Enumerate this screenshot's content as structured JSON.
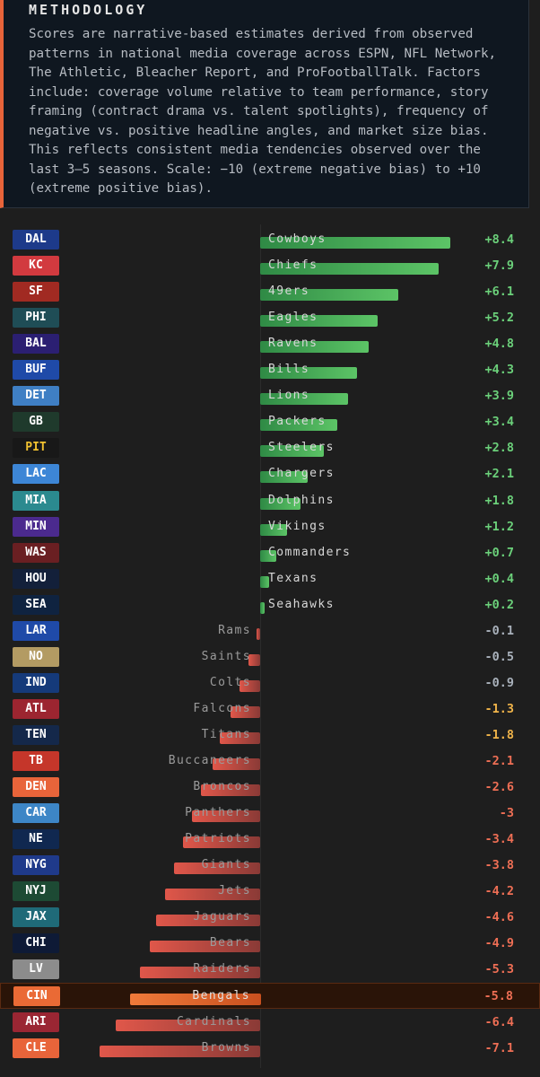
{
  "methodology": {
    "title": "METHODOLOGY",
    "text": "Scores are narrative-based estimates derived from observed\npatterns in national media coverage across ESPN, NFL Network,\nThe Athletic, Bleacher Report, and ProFootballTalk. Factors\ninclude: coverage volume relative to team performance, story\nframing (contract drama vs. talent spotlights), frequency of\nnegative vs. positive headline angles, and market size bias.\nThis reflects consistent media tendencies observed over the\nlast 3–5 seasons. Scale: −10 (extreme negative bias) to +10\n(extreme positive bias)."
  },
  "colors": {
    "positive_value": "#6bd07a",
    "neutral_value": "#a9b1bb",
    "mild_negative_value": "#f0b44a",
    "strong_negative_value": "#ef6f55",
    "highlight": "#f07a3a"
  },
  "chart_data": {
    "type": "bar",
    "orientation": "horizontal",
    "xlim": [
      -10,
      10
    ],
    "highlighted": "CIN",
    "rows": [
      {
        "abbr": "DAL",
        "team": "Cowboys",
        "value": 8.4,
        "label": "+8.4",
        "badge_color": "#1d3a8a",
        "badge_text": "#ffffff"
      },
      {
        "abbr": "KC",
        "team": "Chiefs",
        "value": 7.9,
        "label": "+7.9",
        "badge_color": "#d23a3f",
        "badge_text": "#ffffff"
      },
      {
        "abbr": "SF",
        "team": "49ers",
        "value": 6.1,
        "label": "+6.1",
        "badge_color": "#a12a22",
        "badge_text": "#ffffff"
      },
      {
        "abbr": "PHI",
        "team": "Eagles",
        "value": 5.2,
        "label": "+5.2",
        "badge_color": "#1f4d56",
        "badge_text": "#ffffff"
      },
      {
        "abbr": "BAL",
        "team": "Ravens",
        "value": 4.8,
        "label": "+4.8",
        "badge_color": "#2b1f72",
        "badge_text": "#ffffff"
      },
      {
        "abbr": "BUF",
        "team": "Bills",
        "value": 4.3,
        "label": "+4.3",
        "badge_color": "#1f4aa8",
        "badge_text": "#ffffff"
      },
      {
        "abbr": "DET",
        "team": "Lions",
        "value": 3.9,
        "label": "+3.9",
        "badge_color": "#3f7fc4",
        "badge_text": "#ffffff"
      },
      {
        "abbr": "GB",
        "team": "Packers",
        "value": 3.4,
        "label": "+3.4",
        "badge_color": "#1f3a2c",
        "badge_text": "#ffffff"
      },
      {
        "abbr": "PIT",
        "team": "Steelers",
        "value": 2.8,
        "label": "+2.8",
        "badge_color": "#181818",
        "badge_text": "#f2c230"
      },
      {
        "abbr": "LAC",
        "team": "Chargers",
        "value": 2.1,
        "label": "+2.1",
        "badge_color": "#3d86d6",
        "badge_text": "#ffffff"
      },
      {
        "abbr": "MIA",
        "team": "Dolphins",
        "value": 1.8,
        "label": "+1.8",
        "badge_color": "#2b8a8f",
        "badge_text": "#ffffff"
      },
      {
        "abbr": "MIN",
        "team": "Vikings",
        "value": 1.2,
        "label": "+1.2",
        "badge_color": "#4b2a8e",
        "badge_text": "#ffffff"
      },
      {
        "abbr": "WAS",
        "team": "Commanders",
        "value": 0.7,
        "label": "+0.7",
        "badge_color": "#6a1f22",
        "badge_text": "#ffffff"
      },
      {
        "abbr": "HOU",
        "team": "Texans",
        "value": 0.4,
        "label": "+0.4",
        "badge_color": "#13203a",
        "badge_text": "#ffffff"
      },
      {
        "abbr": "SEA",
        "team": "Seahawks",
        "value": 0.2,
        "label": "+0.2",
        "badge_color": "#0f2340",
        "badge_text": "#ffffff"
      },
      {
        "abbr": "LAR",
        "team": "Rams",
        "value": -0.1,
        "label": "-0.1",
        "badge_color": "#1f4aa8",
        "badge_text": "#ffffff"
      },
      {
        "abbr": "NO",
        "team": "Saints",
        "value": -0.5,
        "label": "-0.5",
        "badge_color": "#b39b63",
        "badge_text": "#ffffff"
      },
      {
        "abbr": "IND",
        "team": "Colts",
        "value": -0.9,
        "label": "-0.9",
        "badge_color": "#153a7a",
        "badge_text": "#ffffff"
      },
      {
        "abbr": "ATL",
        "team": "Falcons",
        "value": -1.3,
        "label": "-1.3",
        "badge_color": "#9c2530",
        "badge_text": "#ffffff"
      },
      {
        "abbr": "TEN",
        "team": "Titans",
        "value": -1.8,
        "label": "-1.8",
        "badge_color": "#14284a",
        "badge_text": "#ffffff"
      },
      {
        "abbr": "TB",
        "team": "Buccaneers",
        "value": -2.1,
        "label": "-2.1",
        "badge_color": "#c5362a",
        "badge_text": "#ffffff"
      },
      {
        "abbr": "DEN",
        "team": "Broncos",
        "value": -2.6,
        "label": "-2.6",
        "badge_color": "#e8643a",
        "badge_text": "#ffffff"
      },
      {
        "abbr": "CAR",
        "team": "Panthers",
        "value": -3,
        "label": "-3",
        "badge_color": "#3d86c6",
        "badge_text": "#ffffff"
      },
      {
        "abbr": "NE",
        "team": "Patriots",
        "value": -3.4,
        "label": "-3.4",
        "badge_color": "#102850",
        "badge_text": "#ffffff"
      },
      {
        "abbr": "NYG",
        "team": "Giants",
        "value": -3.8,
        "label": "-3.8",
        "badge_color": "#1f3a8a",
        "badge_text": "#ffffff"
      },
      {
        "abbr": "NYJ",
        "team": "Jets",
        "value": -4.2,
        "label": "-4.2",
        "badge_color": "#1d4a34",
        "badge_text": "#ffffff"
      },
      {
        "abbr": "JAX",
        "team": "Jaguars",
        "value": -4.6,
        "label": "-4.6",
        "badge_color": "#1f6a78",
        "badge_text": "#ffffff"
      },
      {
        "abbr": "CHI",
        "team": "Bears",
        "value": -4.9,
        "label": "-4.9",
        "badge_color": "#0e1a36",
        "badge_text": "#ffffff"
      },
      {
        "abbr": "LV",
        "team": "Raiders",
        "value": -5.3,
        "label": "-5.3",
        "badge_color": "#8c8c8c",
        "badge_text": "#ffffff"
      },
      {
        "abbr": "CIN",
        "team": "Bengals",
        "value": -5.8,
        "label": "-5.8",
        "badge_color": "#ea6a35",
        "badge_text": "#ffffff"
      },
      {
        "abbr": "ARI",
        "team": "Cardinals",
        "value": -6.4,
        "label": "-6.4",
        "badge_color": "#9a2633",
        "badge_text": "#ffffff"
      },
      {
        "abbr": "CLE",
        "team": "Browns",
        "value": -7.1,
        "label": "-7.1",
        "badge_color": "#e8643a",
        "badge_text": "#ffffff"
      }
    ]
  }
}
